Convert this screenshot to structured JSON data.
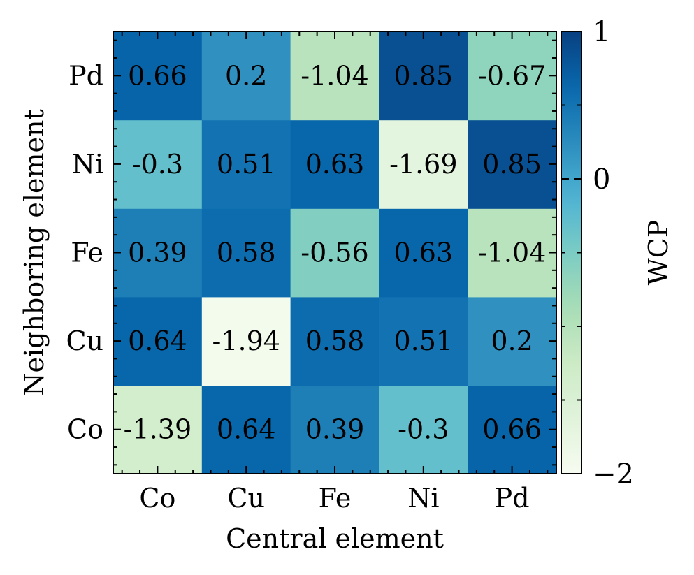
{
  "chart_data": {
    "type": "heatmap",
    "xlabel": "Central element",
    "ylabel": "Neighboring element",
    "x_categories": [
      "Co",
      "Cu",
      "Fe",
      "Ni",
      "Pd"
    ],
    "y_categories": [
      "Co",
      "Cu",
      "Fe",
      "Ni",
      "Pd"
    ],
    "values": [
      [
        -1.39,
        0.64,
        0.39,
        -0.3,
        0.66
      ],
      [
        0.64,
        -1.94,
        0.58,
        0.51,
        0.2
      ],
      [
        0.39,
        0.58,
        -0.56,
        0.63,
        -1.04
      ],
      [
        -0.3,
        0.51,
        0.63,
        -1.69,
        0.85
      ],
      [
        0.66,
        0.2,
        -1.04,
        0.85,
        -0.67
      ]
    ],
    "value_labels": [
      [
        "-1.39",
        "0.64",
        "0.39",
        "-0.3",
        "0.66"
      ],
      [
        "0.64",
        "-1.94",
        "0.58",
        "0.51",
        "0.2"
      ],
      [
        "0.39",
        "0.58",
        "-0.56",
        "0.63",
        "-1.04"
      ],
      [
        "-0.3",
        "0.51",
        "0.63",
        "-1.69",
        "0.85"
      ],
      [
        "0.66",
        "0.2",
        "-1.04",
        "0.85",
        "-0.67"
      ]
    ],
    "colormap": "GnBu",
    "colorbar": {
      "label": "WCP",
      "vmin": -2,
      "vmax": 1,
      "ticks": [
        1,
        0,
        -2
      ],
      "tick_labels": [
        "1",
        "0",
        "−2"
      ]
    }
  }
}
